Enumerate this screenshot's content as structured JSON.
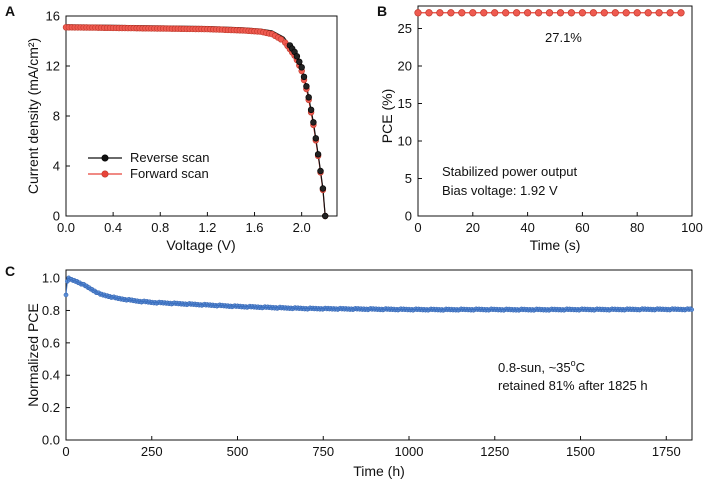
{
  "colors": {
    "reverse": "#111111",
    "forward": "#e8443a",
    "pce_series": "#e8443a",
    "stability_series": "#3a6fc0",
    "axis": "#111111"
  },
  "chart_data": [
    {
      "panel": "A",
      "type": "line",
      "xlabel": "Voltage (V)",
      "ylabel": "Current density (mA/cm²)",
      "xlim": [
        0.0,
        2.3
      ],
      "ylim": [
        0,
        16
      ],
      "xticks": [
        0.0,
        0.4,
        0.8,
        1.2,
        1.6,
        2.0
      ],
      "xtick_labels": [
        "0.0",
        "0.4",
        "0.8",
        "1.2",
        "1.6",
        "2.0"
      ],
      "yticks": [
        0,
        4,
        8,
        12,
        16
      ],
      "ytick_labels": [
        "0",
        "4",
        "8",
        "12",
        "16"
      ],
      "legend_position": "bottom-left",
      "series": [
        {
          "name": "Reverse scan",
          "color": "#111111",
          "x": [
            0.0,
            0.4,
            0.8,
            1.2,
            1.5,
            1.65,
            1.75,
            1.85,
            1.95,
            2.0,
            2.05,
            2.1,
            2.15,
            2.18,
            2.2
          ],
          "y": [
            15.3,
            15.25,
            15.2,
            15.15,
            15.05,
            14.95,
            14.8,
            14.3,
            13.0,
            11.9,
            10.0,
            7.5,
            4.3,
            2.2,
            0.0
          ]
        },
        {
          "name": "Forward scan",
          "color": "#e8443a",
          "x": [
            0.0,
            0.4,
            0.8,
            1.2,
            1.5,
            1.65,
            1.75,
            1.85,
            1.95,
            2.0,
            2.05,
            2.1,
            2.15,
            2.18,
            2.2
          ],
          "y": [
            15.1,
            15.05,
            15.0,
            14.95,
            14.85,
            14.75,
            14.55,
            14.0,
            12.7,
            11.6,
            9.8,
            7.3,
            4.2,
            2.1,
            0.0
          ]
        }
      ]
    },
    {
      "panel": "B",
      "type": "line",
      "xlabel": "Time (s)",
      "ylabel": "PCE (%)",
      "xlim": [
        0,
        100
      ],
      "ylim": [
        0,
        28
      ],
      "xticks": [
        0,
        20,
        40,
        60,
        80,
        100
      ],
      "xtick_labels": [
        "0",
        "20",
        "40",
        "60",
        "80",
        "100"
      ],
      "yticks": [
        0,
        5,
        10,
        15,
        20,
        25
      ],
      "ytick_labels": [
        "0",
        "5",
        "10",
        "15",
        "20",
        "25"
      ],
      "series": [
        {
          "name": "PCE",
          "color": "#e8443a",
          "x_start": 0,
          "x_end": 100,
          "x_step": 4,
          "constant_y": 27.1
        }
      ],
      "value_label": "27.1%",
      "annotations": [
        "Stabilized power output",
        "Bias voltage: 1.92 V"
      ]
    },
    {
      "panel": "C",
      "type": "line",
      "xlabel": "Time (h)",
      "ylabel": "Normalized PCE",
      "xlim": [
        0,
        1825
      ],
      "ylim": [
        0.0,
        1.05
      ],
      "xticks": [
        0,
        250,
        500,
        750,
        1000,
        1250,
        1500,
        1750
      ],
      "xtick_labels": [
        "0",
        "250",
        "500",
        "750",
        "1000",
        "1250",
        "1500",
        "1750"
      ],
      "yticks": [
        0.0,
        0.2,
        0.4,
        0.6,
        0.8,
        1.0
      ],
      "ytick_labels": [
        "0.0",
        "0.2",
        "0.4",
        "0.6",
        "0.8",
        "1.0"
      ],
      "series": [
        {
          "name": "Normalized PCE",
          "color": "#3a6fc0",
          "x": [
            0,
            5,
            15,
            30,
            50,
            75,
            100,
            150,
            200,
            250,
            300,
            400,
            500,
            600,
            700,
            800,
            900,
            1000,
            1100,
            1200,
            1300,
            1400,
            1500,
            1600,
            1700,
            1825
          ],
          "y": [
            0.9,
            1.0,
            0.99,
            0.98,
            0.96,
            0.93,
            0.9,
            0.875,
            0.86,
            0.85,
            0.845,
            0.835,
            0.825,
            0.818,
            0.812,
            0.81,
            0.808,
            0.806,
            0.805,
            0.806,
            0.805,
            0.805,
            0.806,
            0.806,
            0.807,
            0.807
          ]
        }
      ],
      "annotation_line1_base": "0.8-sun, ~35",
      "annotation_line1_sup": "o",
      "annotation_line1_unit": "C",
      "annotation_line2": "retained 81% after 1825 h"
    }
  ],
  "labels": {
    "panel_a": "A",
    "panel_b": "B",
    "panel_c": "C"
  }
}
